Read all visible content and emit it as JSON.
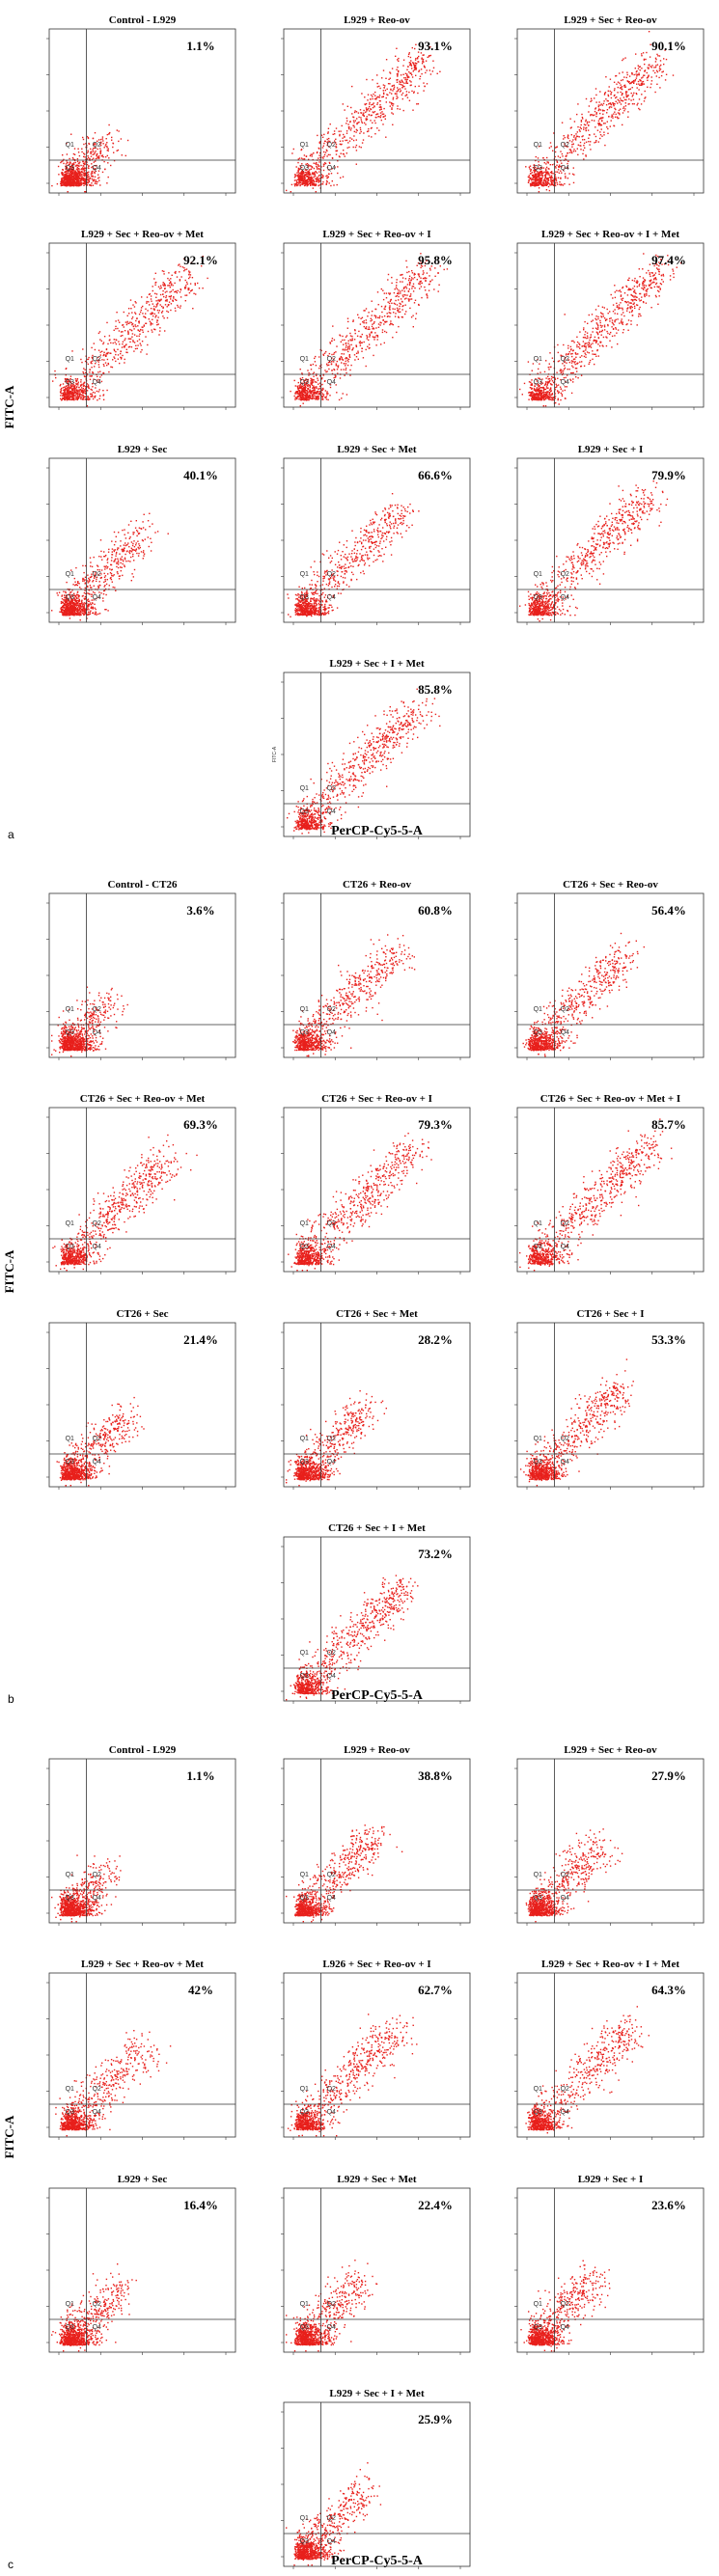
{
  "chart_data": [
    {
      "type": "scatter",
      "panel_label": "a",
      "ylabel": "FITC-A",
      "xlabel": "PerCP-Cy5-5-A",
      "quadrant_labels": [
        "Q1",
        "Q2",
        "Q3",
        "Q4"
      ],
      "scale": "log",
      "plots": [
        {
          "title": "Control - L929",
          "percent": "1.1%",
          "value": 1.1
        },
        {
          "title": "L929 + Reo-ov",
          "percent": "93.1%",
          "value": 93.1
        },
        {
          "title": "L929 + Sec + Reo-ov",
          "percent": "90.1%",
          "value": 90.1
        },
        {
          "title": "L929 + Sec + Reo-ov + Met",
          "percent": "92.1%",
          "value": 92.1
        },
        {
          "title": "L929 + Sec + Reo-ov + I",
          "percent": "95.8%",
          "value": 95.8
        },
        {
          "title": "L929 + Sec + Reo-ov + I + Met",
          "percent": "97.4%",
          "value": 97.4
        },
        {
          "title": "L929 + Sec",
          "percent": "40.1%",
          "value": 40.1
        },
        {
          "title": "L929 + Sec + Met",
          "percent": "66.6%",
          "value": 66.6
        },
        {
          "title": "L929 + Sec + I",
          "percent": "79.9%",
          "value": 79.9
        },
        {
          "title": "L929 + Sec + I + Met",
          "percent": "85.8%",
          "value": 85.8,
          "inner_ylabel": "FITC-A"
        }
      ]
    },
    {
      "type": "scatter",
      "panel_label": "b",
      "ylabel": "FITC-A",
      "xlabel": "PerCP-Cy5-5-A",
      "quadrant_labels": [
        "Q1",
        "Q2",
        "Q3",
        "Q4"
      ],
      "scale": "log",
      "plots": [
        {
          "title": "Control - CT26",
          "percent": "3.6%",
          "value": 3.6
        },
        {
          "title": "CT26 + Reo-ov",
          "percent": "60.8%",
          "value": 60.8
        },
        {
          "title": "CT26 + Sec + Reo-ov",
          "percent": "56.4%",
          "value": 56.4
        },
        {
          "title": "CT26 + Sec + Reo-ov + Met",
          "percent": "69.3%",
          "value": 69.3
        },
        {
          "title": "CT26 + Sec + Reo-ov + I",
          "percent": "79.3%",
          "value": 79.3
        },
        {
          "title": "CT26 + Sec + Reo-ov + Met + I",
          "percent": "85.7%",
          "value": 85.7
        },
        {
          "title": "CT26 + Sec",
          "percent": "21.4%",
          "value": 21.4
        },
        {
          "title": "CT26 + Sec + Met",
          "percent": "28.2%",
          "value": 28.2
        },
        {
          "title": "CT26 + Sec + I",
          "percent": "53.3%",
          "value": 53.3
        },
        {
          "title": "CT26 + Sec + I + Met",
          "percent": "73.2%",
          "value": 73.2
        }
      ]
    },
    {
      "type": "scatter",
      "panel_label": "c",
      "ylabel": "FITC-A",
      "xlabel": "PerCP-Cy5-5-A",
      "quadrant_labels": [
        "Q1",
        "Q2",
        "Q3",
        "Q4"
      ],
      "scale": "log",
      "plots": [
        {
          "title": "Control - L929",
          "percent": "1.1%",
          "value": 1.1
        },
        {
          "title": "L929 + Reo-ov",
          "percent": "38.8%",
          "value": 38.8
        },
        {
          "title": "L929 + Sec + Reo-ov",
          "percent": "27.9%",
          "value": 27.9
        },
        {
          "title": "L929 + Sec + Reo-ov + Met",
          "percent": "42%",
          "value": 42
        },
        {
          "title": "L926 + Sec + Reo-ov + I",
          "percent": "62.7%",
          "value": 62.7
        },
        {
          "title": "L929 + Sec + Reo-ov + I + Met",
          "percent": "64.3%",
          "value": 64.3
        },
        {
          "title": "L929 + Sec",
          "percent": "16.4%",
          "value": 16.4
        },
        {
          "title": "L929 + Sec + Met",
          "percent": "22.4%",
          "value": 22.4
        },
        {
          "title": "L929 + Sec + I",
          "percent": "23.6%",
          "value": 23.6
        },
        {
          "title": "L929 + Sec + I + Met",
          "percent": "25.9%",
          "value": 25.9
        }
      ]
    }
  ],
  "colors": {
    "dots": "#e8201c",
    "frame": "#333333"
  }
}
